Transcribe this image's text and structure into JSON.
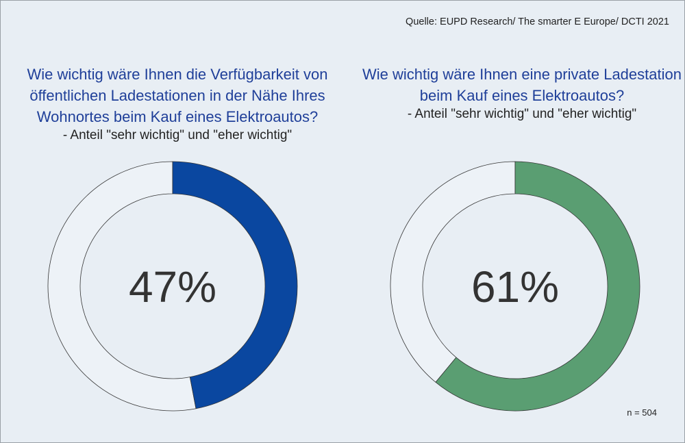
{
  "source": "Quelle: EUPD Research/ The smarter E Europe/ DCTI 2021",
  "sample_size": "n = 504",
  "chart_data": [
    {
      "type": "pie",
      "title": "Wie wichtig wäre Ihnen die Verfügbarkeit von öffentlichen Ladestationen in der Nähe Ihres Wohnortes beim Kauf eines Elektroautos?",
      "subtitle": "- Anteil \"sehr wichtig\" und \"eher wichtig\"",
      "value": 47,
      "label": "47%",
      "color": "#0a47a0",
      "remainder_color": "#edf2f7"
    },
    {
      "type": "pie",
      "title": "Wie wichtig wäre Ihnen eine private Ladestation beim Kauf eines Elektroautos?",
      "subtitle": "- Anteil \"sehr wichtig\" und \"eher wichtig\"",
      "value": 61,
      "label": "61%",
      "color": "#5a9e72",
      "remainder_color": "#edf2f7"
    }
  ]
}
